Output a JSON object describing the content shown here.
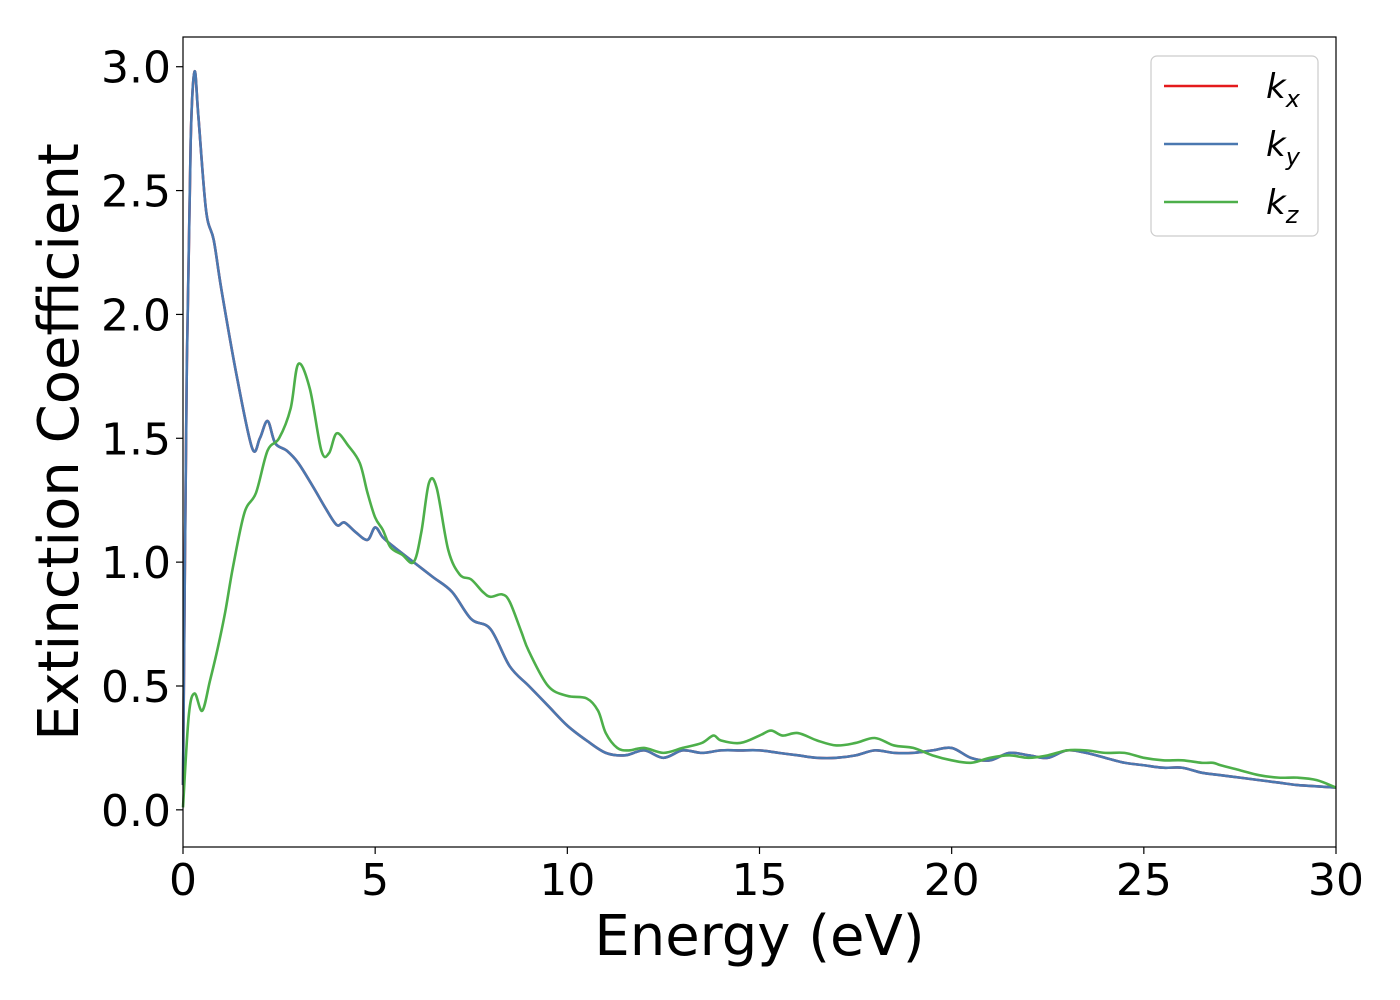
{
  "chart_data": {
    "type": "line",
    "title": "",
    "xlabel": "Energy (eV)",
    "ylabel": "Extinction Coefficient",
    "xlim": [
      0,
      30
    ],
    "ylim": [
      -0.15,
      3.12
    ],
    "xticks": [
      0,
      5,
      10,
      15,
      20,
      25,
      30
    ],
    "xtick_labels": [
      "0",
      "5",
      "10",
      "15",
      "20",
      "25",
      "30"
    ],
    "yticks": [
      0.0,
      0.5,
      1.0,
      1.5,
      2.0,
      2.5,
      3.0
    ],
    "ytick_labels": [
      "0.0",
      "0.5",
      "1.0",
      "1.5",
      "2.0",
      "2.5",
      "3.0"
    ],
    "grid": false,
    "legend_position": "top-right",
    "series": [
      {
        "name": "k_x",
        "legend_base": "k",
        "legend_sub": "x",
        "color": "#e41a1c",
        "x": [
          0,
          0.1,
          0.2,
          0.3,
          0.4,
          0.6,
          0.8,
          1.0,
          1.4,
          1.8,
          2.0,
          2.2,
          2.4,
          2.7,
          3.0,
          3.4,
          3.7,
          4.0,
          4.2,
          4.5,
          4.8,
          5.0,
          5.2,
          5.5,
          6.0,
          6.5,
          7.0,
          7.5,
          8.0,
          8.5,
          9.0,
          9.5,
          10.0,
          10.5,
          11.0,
          11.5,
          12.0,
          12.5,
          13.0,
          13.5,
          14.0,
          14.5,
          15.0,
          15.5,
          16.0,
          16.5,
          17.0,
          17.5,
          18.0,
          18.5,
          19.0,
          19.5,
          20.0,
          20.5,
          21.0,
          21.5,
          22.0,
          22.5,
          23.0,
          23.5,
          24.0,
          24.5,
          25.0,
          25.5,
          26.0,
          26.5,
          27.0,
          27.5,
          28.0,
          28.5,
          29.0,
          29.5,
          30.0
        ],
        "values": [
          0.1,
          1.8,
          2.7,
          2.98,
          2.8,
          2.42,
          2.3,
          2.1,
          1.75,
          1.46,
          1.5,
          1.57,
          1.48,
          1.45,
          1.4,
          1.3,
          1.22,
          1.15,
          1.16,
          1.12,
          1.09,
          1.14,
          1.1,
          1.06,
          1.0,
          0.94,
          0.88,
          0.77,
          0.73,
          0.58,
          0.5,
          0.42,
          0.34,
          0.28,
          0.23,
          0.22,
          0.24,
          0.21,
          0.24,
          0.23,
          0.24,
          0.24,
          0.24,
          0.23,
          0.22,
          0.21,
          0.21,
          0.22,
          0.24,
          0.23,
          0.23,
          0.24,
          0.25,
          0.21,
          0.2,
          0.23,
          0.22,
          0.21,
          0.24,
          0.23,
          0.21,
          0.19,
          0.18,
          0.17,
          0.17,
          0.15,
          0.14,
          0.13,
          0.12,
          0.11,
          0.1,
          0.095,
          0.09
        ]
      },
      {
        "name": "k_y",
        "legend_base": "k",
        "legend_sub": "y",
        "color": "#4a78b0",
        "x": [
          0,
          0.1,
          0.2,
          0.3,
          0.4,
          0.6,
          0.8,
          1.0,
          1.4,
          1.8,
          2.0,
          2.2,
          2.4,
          2.7,
          3.0,
          3.4,
          3.7,
          4.0,
          4.2,
          4.5,
          4.8,
          5.0,
          5.2,
          5.5,
          6.0,
          6.5,
          7.0,
          7.5,
          8.0,
          8.5,
          9.0,
          9.5,
          10.0,
          10.5,
          11.0,
          11.5,
          12.0,
          12.5,
          13.0,
          13.5,
          14.0,
          14.5,
          15.0,
          15.5,
          16.0,
          16.5,
          17.0,
          17.5,
          18.0,
          18.5,
          19.0,
          19.5,
          20.0,
          20.5,
          21.0,
          21.5,
          22.0,
          22.5,
          23.0,
          23.5,
          24.0,
          24.5,
          25.0,
          25.5,
          26.0,
          26.5,
          27.0,
          27.5,
          28.0,
          28.5,
          29.0,
          29.5,
          30.0
        ],
        "values": [
          0.1,
          1.8,
          2.7,
          2.98,
          2.8,
          2.42,
          2.3,
          2.1,
          1.75,
          1.46,
          1.5,
          1.57,
          1.48,
          1.45,
          1.4,
          1.3,
          1.22,
          1.15,
          1.16,
          1.12,
          1.09,
          1.14,
          1.1,
          1.06,
          1.0,
          0.94,
          0.88,
          0.77,
          0.73,
          0.58,
          0.5,
          0.42,
          0.34,
          0.28,
          0.23,
          0.22,
          0.24,
          0.21,
          0.24,
          0.23,
          0.24,
          0.24,
          0.24,
          0.23,
          0.22,
          0.21,
          0.21,
          0.22,
          0.24,
          0.23,
          0.23,
          0.24,
          0.25,
          0.21,
          0.2,
          0.23,
          0.22,
          0.21,
          0.24,
          0.23,
          0.21,
          0.19,
          0.18,
          0.17,
          0.17,
          0.15,
          0.14,
          0.13,
          0.12,
          0.11,
          0.1,
          0.095,
          0.09
        ]
      },
      {
        "name": "k_z",
        "legend_base": "k",
        "legend_sub": "z",
        "color": "#4daf4a",
        "x": [
          0,
          0.15,
          0.3,
          0.5,
          0.7,
          0.9,
          1.1,
          1.3,
          1.6,
          1.9,
          2.2,
          2.5,
          2.8,
          3.0,
          3.3,
          3.6,
          3.8,
          4.0,
          4.3,
          4.6,
          4.8,
          5.0,
          5.2,
          5.4,
          5.7,
          6.0,
          6.2,
          6.4,
          6.6,
          6.9,
          7.2,
          7.5,
          7.8,
          8.0,
          8.3,
          8.5,
          8.8,
          9.0,
          9.5,
          10.0,
          10.5,
          10.8,
          11.0,
          11.3,
          11.6,
          12.0,
          12.5,
          13.0,
          13.5,
          13.8,
          14.0,
          14.5,
          15.0,
          15.3,
          15.6,
          16.0,
          16.5,
          17.0,
          17.5,
          18.0,
          18.5,
          19.0,
          19.5,
          20.0,
          20.5,
          21.0,
          21.5,
          22.0,
          22.5,
          23.0,
          23.5,
          24.0,
          24.5,
          25.0,
          25.5,
          26.0,
          26.5,
          26.8,
          27.0,
          27.5,
          28.0,
          28.5,
          29.0,
          29.5,
          30.0
        ],
        "values": [
          0.01,
          0.38,
          0.47,
          0.4,
          0.52,
          0.65,
          0.8,
          0.98,
          1.2,
          1.28,
          1.45,
          1.5,
          1.62,
          1.8,
          1.7,
          1.45,
          1.44,
          1.52,
          1.47,
          1.4,
          1.28,
          1.18,
          1.13,
          1.06,
          1.03,
          1.0,
          1.12,
          1.32,
          1.3,
          1.05,
          0.95,
          0.93,
          0.88,
          0.86,
          0.87,
          0.84,
          0.72,
          0.64,
          0.5,
          0.46,
          0.45,
          0.4,
          0.31,
          0.25,
          0.24,
          0.25,
          0.23,
          0.25,
          0.27,
          0.3,
          0.28,
          0.27,
          0.3,
          0.32,
          0.3,
          0.31,
          0.28,
          0.26,
          0.27,
          0.29,
          0.26,
          0.25,
          0.22,
          0.2,
          0.19,
          0.21,
          0.22,
          0.21,
          0.22,
          0.24,
          0.24,
          0.23,
          0.23,
          0.21,
          0.2,
          0.2,
          0.19,
          0.19,
          0.18,
          0.16,
          0.14,
          0.13,
          0.13,
          0.12,
          0.09
        ]
      }
    ]
  }
}
